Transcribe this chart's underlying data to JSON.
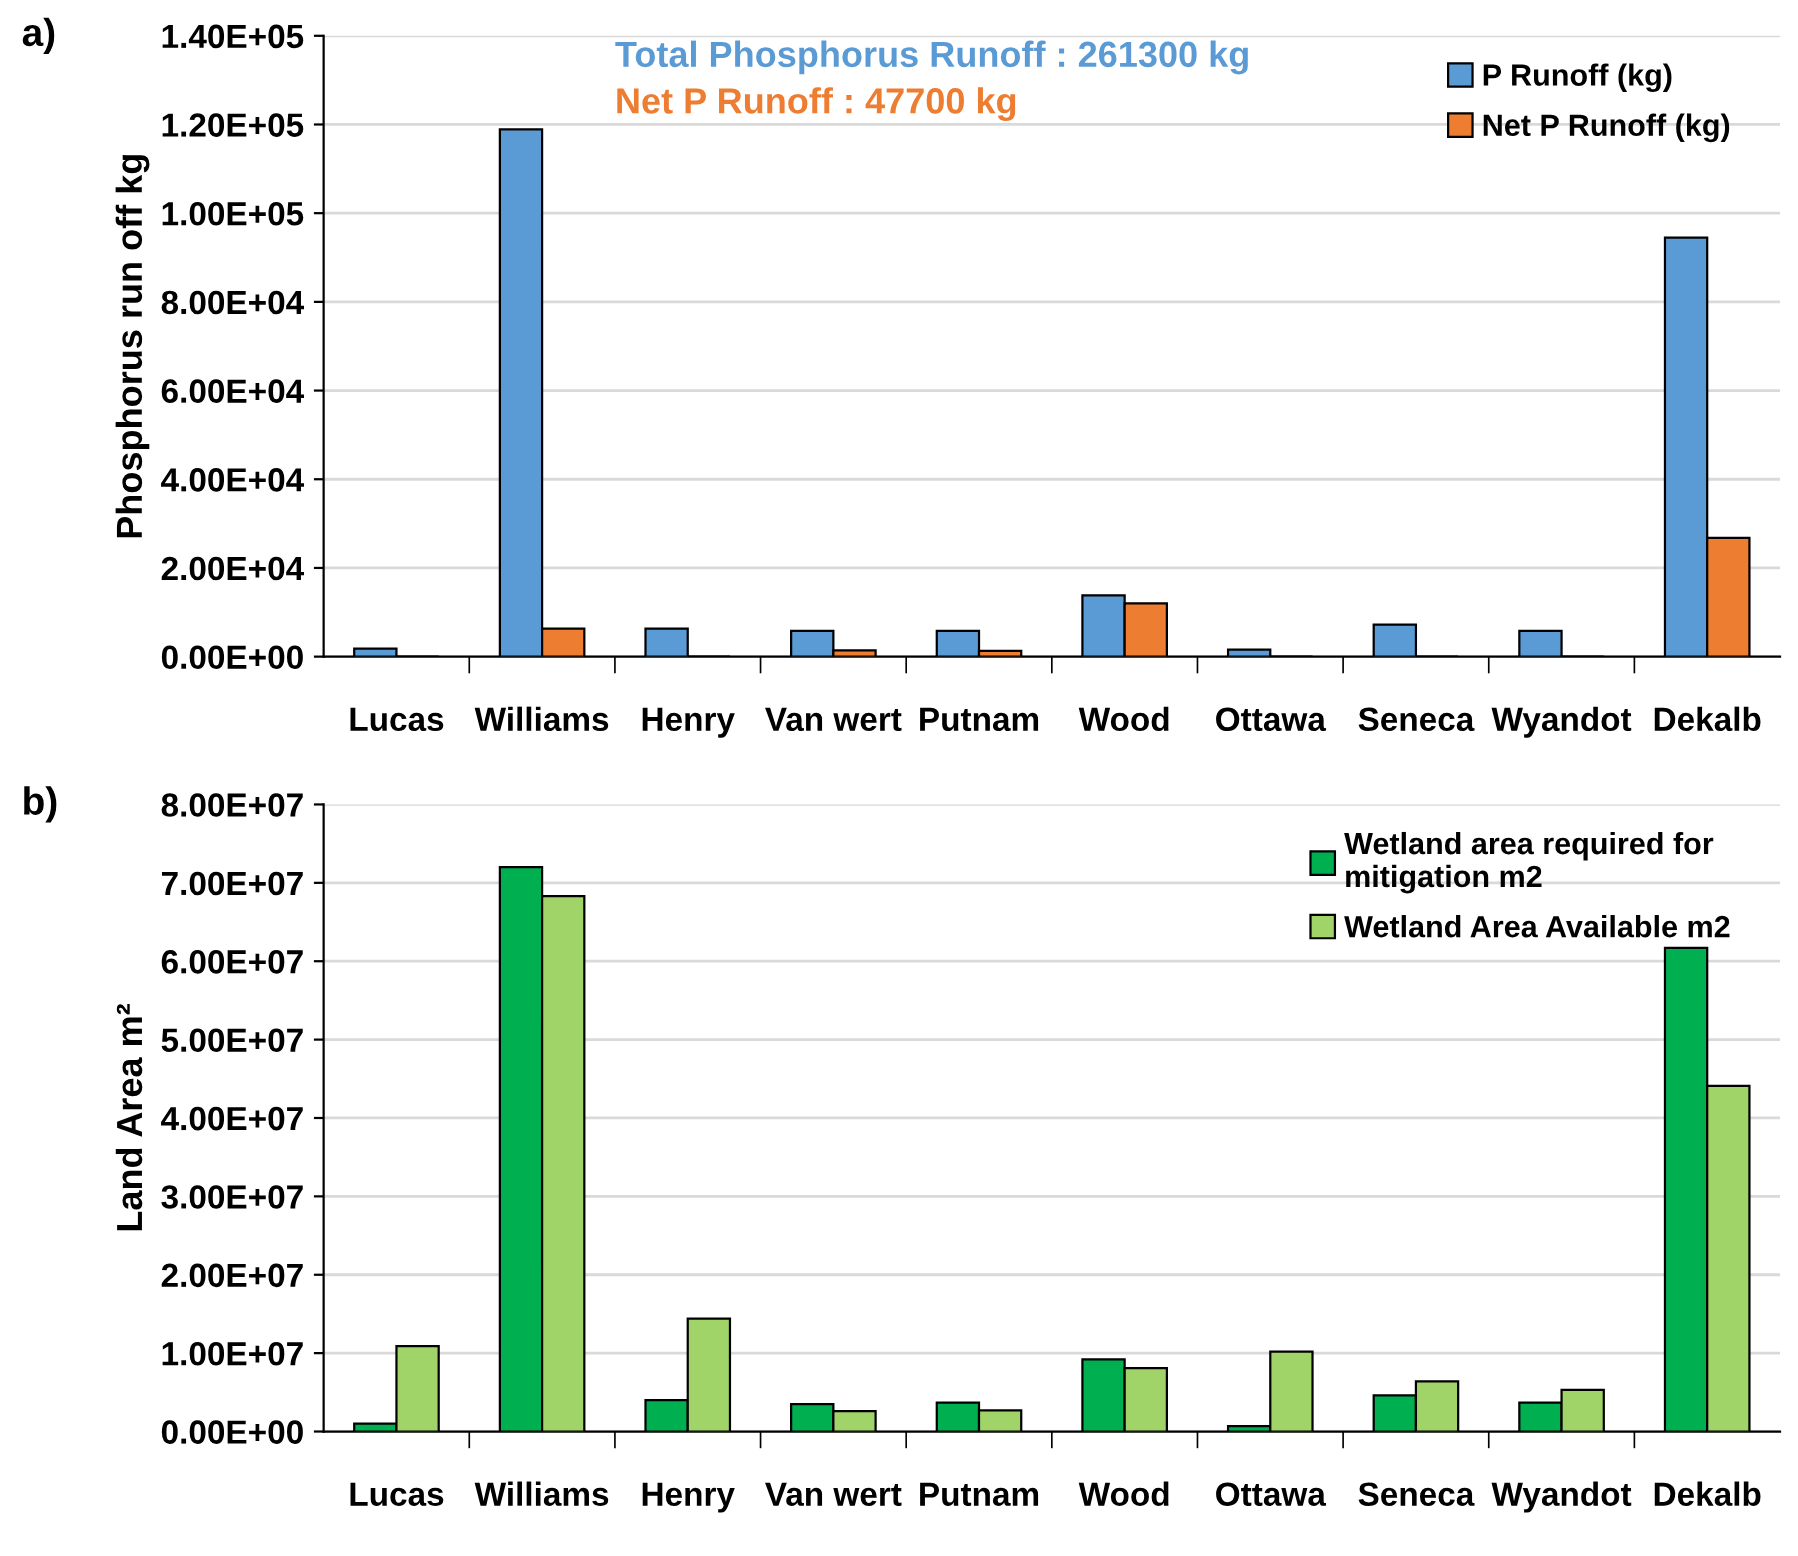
{
  "chart_data": [
    {
      "type": "bar",
      "title": "a)",
      "ylabel": "Phosphorus run off kg",
      "categories": [
        "Lucas",
        "Williams",
        "Henry",
        "Van wert",
        "Putnam",
        "Wood",
        "Ottawa",
        "Seneca",
        "Wyandot",
        "Dekalb"
      ],
      "series": [
        {
          "name": "P Runoff (kg)",
          "color": "#5b9bd5",
          "values": [
            1800,
            118900,
            6300,
            5800,
            5800,
            13800,
            1600,
            7200,
            5800,
            94500
          ]
        },
        {
          "name": "Net P Runoff (kg)",
          "color": "#ed7d31",
          "values": [
            0,
            6300,
            0,
            1400,
            1300,
            12000,
            0,
            0,
            0,
            26800
          ]
        }
      ],
      "ylim": [
        0,
        140000
      ],
      "yticks": [
        {
          "value": 0,
          "label": "0.00E+00"
        },
        {
          "value": 20000,
          "label": "2.00E+04"
        },
        {
          "value": 40000,
          "label": "4.00E+04"
        },
        {
          "value": 60000,
          "label": "6.00E+04"
        },
        {
          "value": 80000,
          "label": "8.00E+04"
        },
        {
          "value": 100000,
          "label": "1.00E+05"
        },
        {
          "value": 120000,
          "label": "1.20E+05"
        },
        {
          "value": 140000,
          "label": "1.40E+05"
        }
      ],
      "annotations": [
        "Total Phosphorus Runoff : 261300 kg",
        "Net P Runoff : 47700 kg"
      ],
      "grid": "y",
      "legend": "top right"
    },
    {
      "type": "bar",
      "title": "b)",
      "ylabel": "Land Area m²",
      "categories": [
        "Lucas",
        "Williams",
        "Henry",
        "Van wert",
        "Putnam",
        "Wood",
        "Ottawa",
        "Seneca",
        "Wyandot",
        "Dekalb"
      ],
      "series": [
        {
          "name": "Wetland area required for\nmitigation m2",
          "color": "#00b050",
          "values": [
            1000000,
            72000000,
            4000000,
            3500000,
            3700000,
            9200000,
            700000,
            4600000,
            3700000,
            61700000
          ]
        },
        {
          "name": "Wetland Area Available m2",
          "color": "#a0d468",
          "values": [
            10900000,
            68300000,
            14400000,
            2600000,
            2700000,
            8100000,
            10200000,
            6400000,
            5300000,
            44100000
          ]
        }
      ],
      "ylim": [
        0,
        80000000
      ],
      "yticks": [
        {
          "value": 0,
          "label": "0.00E+00"
        },
        {
          "value": 10000000,
          "label": "1.00E+07"
        },
        {
          "value": 20000000,
          "label": "2.00E+07"
        },
        {
          "value": 30000000,
          "label": "3.00E+07"
        },
        {
          "value": 40000000,
          "label": "4.00E+07"
        },
        {
          "value": 50000000,
          "label": "5.00E+07"
        },
        {
          "value": 60000000,
          "label": "6.00E+07"
        },
        {
          "value": 70000000,
          "label": "7.00E+07"
        },
        {
          "value": 80000000,
          "label": "8.00E+07"
        }
      ],
      "grid": "y",
      "legend": "top right"
    }
  ]
}
